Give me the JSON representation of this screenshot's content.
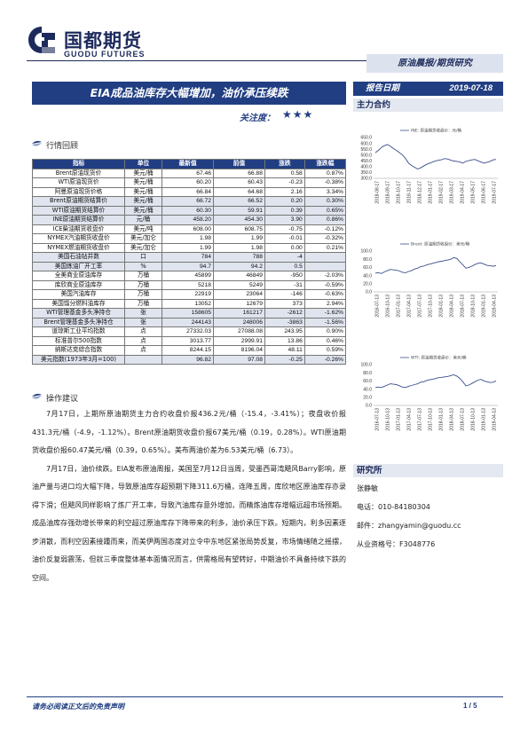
{
  "header": {
    "logo_cn": "国都期货",
    "logo_en": "GUODU FUTURES",
    "tab": "原油晨报/期货研究"
  },
  "report": {
    "title": "EIA成品油库存大幅增加，油价承压续跌",
    "focus_label": "关注度：",
    "focus_stars": "★★★",
    "date_label": "报告日期",
    "date_value": "2019-07-18"
  },
  "sidebar": {
    "main_contract": "主力合约",
    "researcher_title": "研究所",
    "researcher_name": "张静敏",
    "phone": "电话：010-84180304",
    "email": "邮件：zhangyamin@guodu.cc",
    "license": "从业资格号：F3048776"
  },
  "colors": {
    "navy": "#213e82",
    "line": "#3a4e8c"
  },
  "chart_data": [
    {
      "type": "line",
      "legend": "INE: 原油期货收盘价：元/桶",
      "y_ticks": [
        "650.0",
        "600.0",
        "550.0",
        "500.0",
        "450.0",
        "400.0",
        "350.0",
        "300.0"
      ],
      "ylim": [
        300,
        650
      ],
      "x_ticks": [
        "2018-08-17",
        "2018-09-17",
        "2018-10-17",
        "2018-11-17",
        "2018-12-17",
        "2019-01-17",
        "2019-02-17",
        "2019-03-17",
        "2019-04-17",
        "2019-05-17",
        "2019-06-17",
        "2019-07-17"
      ],
      "values": [
        520,
        540,
        565,
        580,
        590,
        575,
        555,
        540,
        520,
        500,
        470,
        430,
        410,
        395,
        380,
        390,
        405,
        420,
        430,
        440,
        450,
        455,
        460,
        470,
        465,
        455,
        448,
        445,
        440,
        430,
        445,
        452,
        458,
        462,
        450,
        440,
        430,
        438,
        445,
        458,
        462
      ]
    },
    {
      "type": "line",
      "legend": "Brent: 原油期货收盘价：美元/桶",
      "y_ticks": [
        "100.0",
        "80.0",
        "60.0",
        "40.0",
        "20.0",
        "0.0"
      ],
      "ylim": [
        0,
        100
      ],
      "x_ticks": [
        "2016-07-13",
        "2016-10-13",
        "2017-01-13",
        "2017-04-13",
        "2017-07-13",
        "2017-10-13",
        "2018-01-13",
        "2018-04-13",
        "2018-07-13",
        "2018-10-13",
        "2019-01-13",
        "2019-04-13"
      ],
      "values": [
        46,
        47,
        45,
        49,
        52,
        55,
        54,
        53,
        51,
        48,
        47,
        50,
        52,
        56,
        58,
        62,
        63,
        66,
        68,
        70,
        72,
        74,
        75,
        77,
        78,
        80,
        84,
        82,
        74,
        66,
        58,
        60,
        63,
        67,
        70,
        71,
        68,
        65,
        64,
        63,
        64
      ]
    },
    {
      "type": "line",
      "legend": "WTI: 原油期货收盘价：美元/桶",
      "y_ticks": [
        "100.0",
        "80.0",
        "60.0",
        "40.0",
        "20.0",
        "0.0"
      ],
      "ylim": [
        0,
        100
      ],
      "x_ticks": [
        "2016-07-13",
        "2016-10-13",
        "2017-01-13",
        "2017-04-13",
        "2017-07-13",
        "2017-10-13",
        "2018-01-13",
        "2018-04-13",
        "2018-07-13",
        "2018-10-13",
        "2019-01-13",
        "2019-04-13"
      ],
      "values": [
        44,
        45,
        44,
        47,
        50,
        53,
        52,
        51,
        48,
        45,
        44,
        47,
        49,
        51,
        53,
        57,
        58,
        61,
        63,
        64,
        66,
        68,
        69,
        70,
        71,
        73,
        75,
        72,
        66,
        58,
        48,
        50,
        54,
        58,
        62,
        64,
        60,
        58,
        56,
        57,
        60
      ]
    }
  ],
  "market_review": {
    "title": "行情回顾",
    "headers": [
      "指标",
      "单位",
      "最新值",
      "前值",
      "涨跌",
      "涨跌幅"
    ],
    "rows": [
      {
        "g": 0,
        "cells": [
          "Brent原油现货价",
          "美元/桶",
          "67.46",
          "66.88",
          "0.58",
          "0.87%"
        ]
      },
      {
        "g": 0,
        "cells": [
          "WTI原油现货价",
          "美元/桶",
          "60.20",
          "60.43",
          "-0.23",
          "-0.38%"
        ]
      },
      {
        "g": 0,
        "cells": [
          "阿曼原油现货价格",
          "美元/桶",
          "66.84",
          "64.68",
          "2.16",
          "3.34%"
        ]
      },
      {
        "g": 1,
        "cells": [
          "Brent原油期货结算价",
          "美元/桶",
          "66.72",
          "66.52",
          "0.20",
          "0.30%"
        ]
      },
      {
        "g": 1,
        "cells": [
          "WTI原油期货结算价",
          "美元/桶",
          "60.30",
          "59.91",
          "0.39",
          "0.65%"
        ]
      },
      {
        "g": 1,
        "cells": [
          "INE原油期货结算价",
          "元/桶",
          "458.20",
          "454.30",
          "3.90",
          "0.86%"
        ]
      },
      {
        "g": 0,
        "cells": [
          "ICE柴油期货收盘价",
          "美元/吨",
          "608.00",
          "608.75",
          "-0.75",
          "-0.12%"
        ]
      },
      {
        "g": 0,
        "cells": [
          "NYMEX汽油期货收盘价",
          "美元/加仑",
          "1.98",
          "1.99",
          "-0.01",
          "-0.32%"
        ]
      },
      {
        "g": 0,
        "cells": [
          "NYMEX燃油期货收盘价",
          "美元/加仑",
          "1.99",
          "1.98",
          "0.00",
          "0.21%"
        ]
      },
      {
        "g": 1,
        "cells": [
          "美国石油钻井数",
          "口",
          "784",
          "788",
          "-4",
          ""
        ]
      },
      {
        "g": 1,
        "cells": [
          "美国炼油厂开工率",
          "%",
          "94.7",
          "94.2",
          "0.5",
          ""
        ]
      },
      {
        "g": 0,
        "cells": [
          "全美商业原油库存",
          "万桶",
          "45899",
          "46849",
          "-950",
          "-2.03%"
        ]
      },
      {
        "g": 0,
        "cells": [
          "库欣商业原油库存",
          "万桶",
          "5218",
          "5249",
          "-31",
          "-0.59%"
        ]
      },
      {
        "g": 0,
        "cells": [
          "美国汽油库存",
          "万桶",
          "22919",
          "23064",
          "-146",
          "-0.63%"
        ]
      },
      {
        "g": 0,
        "cells": [
          "美国馏分燃料油库存",
          "万桶",
          "13052",
          "12679",
          "373",
          "2.94%"
        ]
      },
      {
        "g": 1,
        "cells": [
          "WTI管理基金多头净持仓",
          "张",
          "158605",
          "161217",
          "-2612",
          "-1.62%"
        ]
      },
      {
        "g": 1,
        "cells": [
          "Brent管理基金多头净持仓",
          "张",
          "244143",
          "248006",
          "-3863",
          "-1.56%"
        ]
      },
      {
        "g": 0,
        "cells": [
          "道琼斯工业平均指数",
          "点",
          "27332.03",
          "27088.08",
          "243.95",
          "0.90%"
        ]
      },
      {
        "g": 0,
        "cells": [
          "标准普尔500指数",
          "点",
          "3013.77",
          "2999.91",
          "13.86",
          "0.46%"
        ]
      },
      {
        "g": 0,
        "cells": [
          "纳斯达克综合指数",
          "点",
          "8244.15",
          "8196.04",
          "48.11",
          "0.59%"
        ]
      },
      {
        "g": 1,
        "cells": [
          "美元指数(1973年3月=100)",
          "",
          "96.82",
          "97.08",
          "-0.25",
          "-0.26%"
        ]
      }
    ]
  },
  "advice": {
    "title": "操作建议",
    "p1": "7月17日，上期所原油期货主力合约收盘价报436.2元/桶（-15.4，-3.41%）；夜盘收价报431.3元/桶（-4.9，-1.12%）。Brent原油期货收盘价报67美元/桶（0.19，0.28%）。WTI原油期货收盘价报60.47美元/桶（0.39，0.65%）。美布两油价差为6.53美元/桶（6.73）。",
    "p2": "7月17日，油价续跌。EIA发布原油周报，美国至7月12日当周，受墨西哥湾飓风Barry影响，原油产量与进口均大幅下降，导致原油库存超预期下降311.6万桶，连降五周，库欣地区原油库存亦录得下滑；但飓风同样影响了炼厂开工率，导致汽油库存意外增加，而精炼油库存增幅远超市场预期。成品油库存强劲增长带来的利空超过原油库存下降带来的利多，油价承压下跌。短期内，利多因素逐步消散，而利空因素接踵而来，而美伊两国态度对立令中东地区紧张局势反复，市场情绪随之摇摆，油价反复弱震荡，但就三季度整体基本面情况而言，供需格局有望转好，中期油价不具备持续下跌的空间。"
  },
  "footer": {
    "notice": "请务必阅读正文后的免责声明",
    "page": "1 / 5"
  }
}
